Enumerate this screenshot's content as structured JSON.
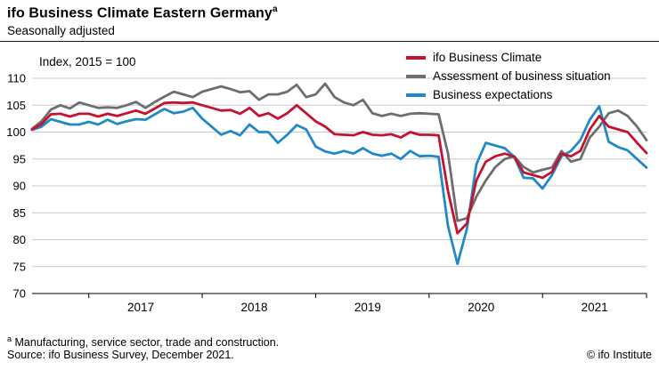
{
  "header": {
    "title": "ifo Business Climate Eastern Germany",
    "title_superscript": "a",
    "subtitle": "Seasonally adjusted"
  },
  "chart_data": {
    "type": "line",
    "title": "ifo Business Climate Eastern Germany",
    "axis_note": "Index, 2015 = 100",
    "ylim": [
      70,
      110
    ],
    "ytick_step": 5,
    "x_start": "2016-07",
    "x_end": "2021-12",
    "x_frequency": "monthly",
    "x_year_labels": [
      "2017",
      "2018",
      "2019",
      "2020",
      "2021"
    ],
    "grid": true,
    "legend_position": "top-right",
    "axis_color": "#000000",
    "grid_color": "#c9c9c9",
    "series": [
      {
        "name": "ifo Business Climate",
        "color": "#c4122f",
        "values": [
          100.5,
          101.5,
          103.3,
          103.4,
          102.9,
          103.4,
          103.4,
          102.9,
          103.4,
          103.0,
          103.5,
          104.0,
          103.4,
          104.4,
          105.4,
          105.5,
          105.4,
          105.5,
          105.0,
          104.5,
          104.0,
          104.1,
          103.4,
          104.5,
          103.0,
          103.5,
          102.5,
          103.5,
          105.0,
          103.5,
          102.0,
          101.0,
          99.6,
          99.5,
          99.4,
          100.0,
          99.5,
          99.4,
          99.6,
          99.0,
          100.0,
          99.5,
          99.5,
          99.4,
          89.0,
          81.2,
          83.0,
          91.0,
          94.5,
          95.5,
          96.0,
          95.4,
          92.5,
          92.0,
          91.5,
          92.6,
          96.0,
          95.5,
          96.5,
          100.5,
          103.0,
          101.0,
          100.5,
          100.0,
          98.0,
          96.1
        ]
      },
      {
        "name": "Assessment of business situation",
        "color": "#6e6e70",
        "values": [
          100.6,
          102.0,
          104.2,
          105.0,
          104.4,
          105.5,
          105.0,
          104.5,
          104.6,
          104.5,
          105.0,
          105.6,
          104.5,
          105.6,
          106.6,
          107.5,
          107.0,
          106.5,
          107.5,
          108.0,
          108.5,
          108.0,
          107.4,
          107.6,
          106.0,
          107.0,
          107.0,
          107.5,
          108.8,
          106.5,
          107.0,
          109.0,
          106.5,
          105.5,
          105.0,
          106.0,
          103.5,
          103.0,
          103.4,
          103.0,
          103.4,
          103.5,
          103.4,
          103.3,
          96.0,
          83.5,
          84.0,
          88.0,
          91.0,
          93.5,
          95.0,
          95.5,
          93.5,
          92.5,
          93.0,
          93.4,
          96.5,
          94.5,
          95.0,
          99.0,
          101.0,
          103.5,
          104.0,
          103.0,
          101.0,
          98.5
        ]
      },
      {
        "name": "Business expectations",
        "color": "#2188c9",
        "values": [
          100.4,
          101.0,
          102.4,
          101.9,
          101.4,
          101.4,
          101.9,
          101.4,
          102.3,
          101.5,
          102.0,
          102.4,
          102.3,
          103.3,
          104.3,
          103.5,
          103.8,
          104.5,
          102.5,
          101.0,
          99.5,
          100.2,
          99.4,
          101.4,
          100.0,
          100.0,
          98.0,
          99.5,
          101.3,
          100.5,
          97.3,
          96.4,
          96.0,
          96.5,
          96.0,
          97.0,
          96.0,
          95.6,
          96.0,
          95.0,
          96.5,
          95.5,
          95.6,
          95.4,
          82.5,
          75.5,
          82.0,
          94.0,
          98.0,
          97.5,
          97.0,
          95.4,
          91.5,
          91.4,
          89.5,
          92.0,
          95.5,
          96.5,
          98.5,
          102.3,
          104.8,
          98.2,
          97.2,
          96.6,
          95.0,
          93.4
        ]
      }
    ]
  },
  "footer": {
    "footnote_marker": "a",
    "footnote": "Manufacturing, service sector, trade and construction.",
    "source": "Source: ifo Business Survey, December 2021.",
    "copyright": "© ifo Institute"
  }
}
